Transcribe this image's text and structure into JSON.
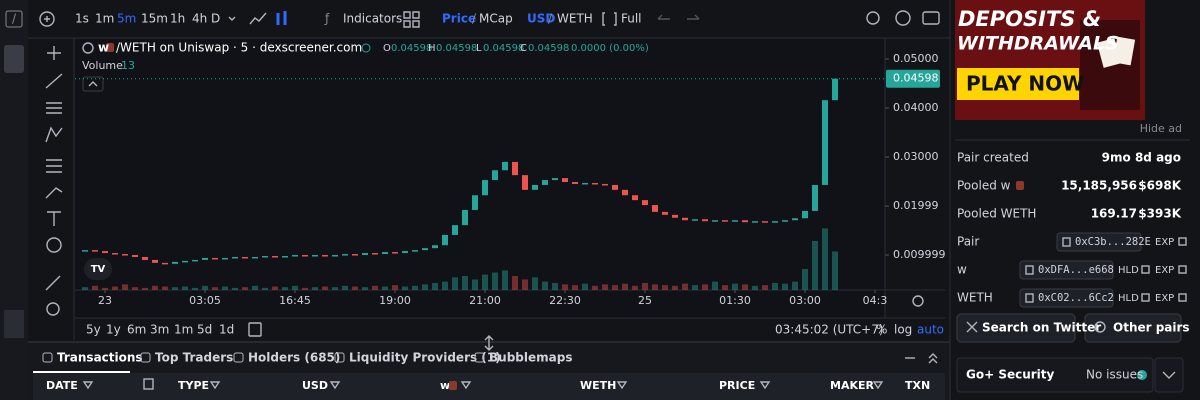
{
  "sidebar": {
    "icon": "/"
  },
  "toolbar": {
    "timeframes": [
      "1s",
      "1m",
      "5m",
      "15m",
      "1h",
      "4h",
      "D"
    ],
    "indicators": "Indicators",
    "price": "Price",
    "sep": "/",
    "mcap": "MCap",
    "usd": "USD",
    "weth": "WETH",
    "full": "Full"
  },
  "legend": {
    "pair": "w",
    "pair_rest": "/WETH on Uniswap · 5 · dexscreener.com",
    "open_label": "O",
    "open": "0.04598",
    "high_label": "H",
    "high": "0.04598",
    "low_label": "L",
    "low": "0.04598",
    "close_label": "C",
    "close": "0.04598",
    "change": "0.0000 (0.00%)",
    "volume_label": "Volume",
    "volume": "13"
  },
  "chart_data": {
    "type": "candlestick",
    "categories": [
      null,
      null,
      "23",
      null,
      null,
      null,
      null,
      null,
      null,
      null,
      null,
      null,
      "03:05",
      null,
      null,
      null,
      null,
      null,
      null,
      null,
      null,
      "16:45",
      null,
      null,
      null,
      null,
      null,
      null,
      null,
      null,
      null,
      "19:00",
      null,
      null,
      null,
      null,
      null,
      null,
      null,
      null,
      "21:00",
      null,
      null,
      null,
      null,
      null,
      null,
      null,
      "22:30",
      null,
      null,
      null,
      null,
      null,
      null,
      null,
      "25",
      null,
      null,
      null,
      null,
      null,
      null,
      null,
      null,
      "01:30",
      null,
      null,
      null,
      null,
      null,
      null,
      "03:00",
      null,
      null,
      null,
      null,
      null,
      null,
      "04:3"
    ],
    "values": [
      0.011,
      0.0108,
      0.0104,
      0.0102,
      0.01,
      0.0096,
      0.009,
      0.0084,
      0.0082,
      0.0086,
      0.0088,
      0.009,
      0.0094,
      0.0092,
      0.0094,
      0.0096,
      0.0094,
      0.0096,
      0.0098,
      0.0096,
      0.0098,
      0.01,
      0.0098,
      0.01,
      0.0098,
      0.01,
      0.0102,
      0.01,
      0.0104,
      0.0102,
      0.0106,
      0.0104,
      0.0108,
      0.011,
      0.0114,
      0.012,
      0.0141,
      0.0161,
      0.0192,
      0.0222,
      0.0253,
      0.0273,
      0.029,
      0.0263,
      0.0233,
      0.0243,
      0.0253,
      0.0257,
      0.0249,
      0.0245,
      0.0247,
      0.0245,
      0.0243,
      0.0233,
      0.0222,
      0.0212,
      0.0202,
      0.0188,
      0.0182,
      0.0176,
      0.0171,
      0.0173,
      0.0169,
      0.0171,
      0.0169,
      0.0171,
      0.0167,
      0.0169,
      0.0167,
      0.0169,
      0.0171,
      0.0175,
      0.019,
      0.0243,
      0.0416,
      0.04598,
      null,
      null,
      null,
      null
    ],
    "volume": [
      4,
      6,
      3,
      5,
      8,
      4,
      3,
      6,
      5,
      4,
      5,
      3,
      6,
      4,
      5,
      3,
      4,
      6,
      3,
      5,
      4,
      6,
      3,
      4,
      5,
      4,
      6,
      5,
      4,
      6,
      5,
      7,
      5,
      6,
      8,
      10,
      12,
      18,
      20,
      15,
      22,
      25,
      28,
      20,
      15,
      18,
      12,
      10,
      8,
      7,
      9,
      6,
      8,
      7,
      9,
      6,
      10,
      8,
      7,
      6,
      9,
      7,
      8,
      12,
      7,
      9,
      8,
      6,
      7,
      10,
      9,
      12,
      30,
      70,
      88,
      55,
      null,
      null,
      null,
      null
    ],
    "volume_ylim": [
      0,
      100
    ],
    "ylim": [
      0.00286,
      0.05429
    ],
    "yticks": [
      {
        "value": 0.05,
        "label": "0.05000"
      },
      {
        "value": 0.04,
        "label": "0.04000"
      },
      {
        "value": 0.03,
        "label": "0.03000"
      },
      {
        "value": 0.01999,
        "label": "0.01999"
      },
      {
        "value": 0.009999,
        "label": "0.009999"
      }
    ],
    "last_price": {
      "value": 0.04598,
      "label": "0.04598"
    },
    "up_color": "#26a69a",
    "down_color": "#ef5350"
  },
  "range_buttons": [
    "5y",
    "1y",
    "6m",
    "3m",
    "1m",
    "5d",
    "1d"
  ],
  "clock": "03:45:02 (UTC+7)",
  "scale_options": [
    "%",
    "log",
    "auto"
  ],
  "tabs": [
    "Transactions",
    "Top Traders",
    "Holders (685)",
    "Liquidity Providers (1)",
    "Bubblemaps"
  ],
  "table": {
    "headers": [
      "DATE",
      "TYPE",
      "USD",
      "w",
      "WETH",
      "PRICE",
      "MAKER",
      "TXN"
    ]
  },
  "ad": {
    "line1": "DEPOSITS &",
    "line2": "WITHDRAWALS",
    "cta": "PLAY NOW",
    "hide": "Hide ad"
  },
  "info": {
    "pair_created_label": "Pair created",
    "pair_created": "9mo 8d ago",
    "pooled_token_label": "Pooled w",
    "pooled_token_amount": "15,185,956",
    "pooled_token_usd": "$698K",
    "pooled_weth_label": "Pooled WETH",
    "pooled_weth_amount": "169.17",
    "pooled_weth_usd": "$393K"
  },
  "addresses": [
    {
      "label": "Pair",
      "address": "0xC3b...282E",
      "links": [
        "EXP"
      ]
    },
    {
      "label": "w",
      "address": "0xDFA...e668",
      "links": [
        "HLD",
        "EXP"
      ]
    },
    {
      "label": "WETH",
      "address": "0xC02...6Cc2",
      "links": [
        "HLD",
        "EXP"
      ]
    }
  ],
  "buttons": [
    "Search on Twitter",
    "Other pairs"
  ],
  "security": {
    "title": "Go+ Security",
    "status": "No issues"
  }
}
